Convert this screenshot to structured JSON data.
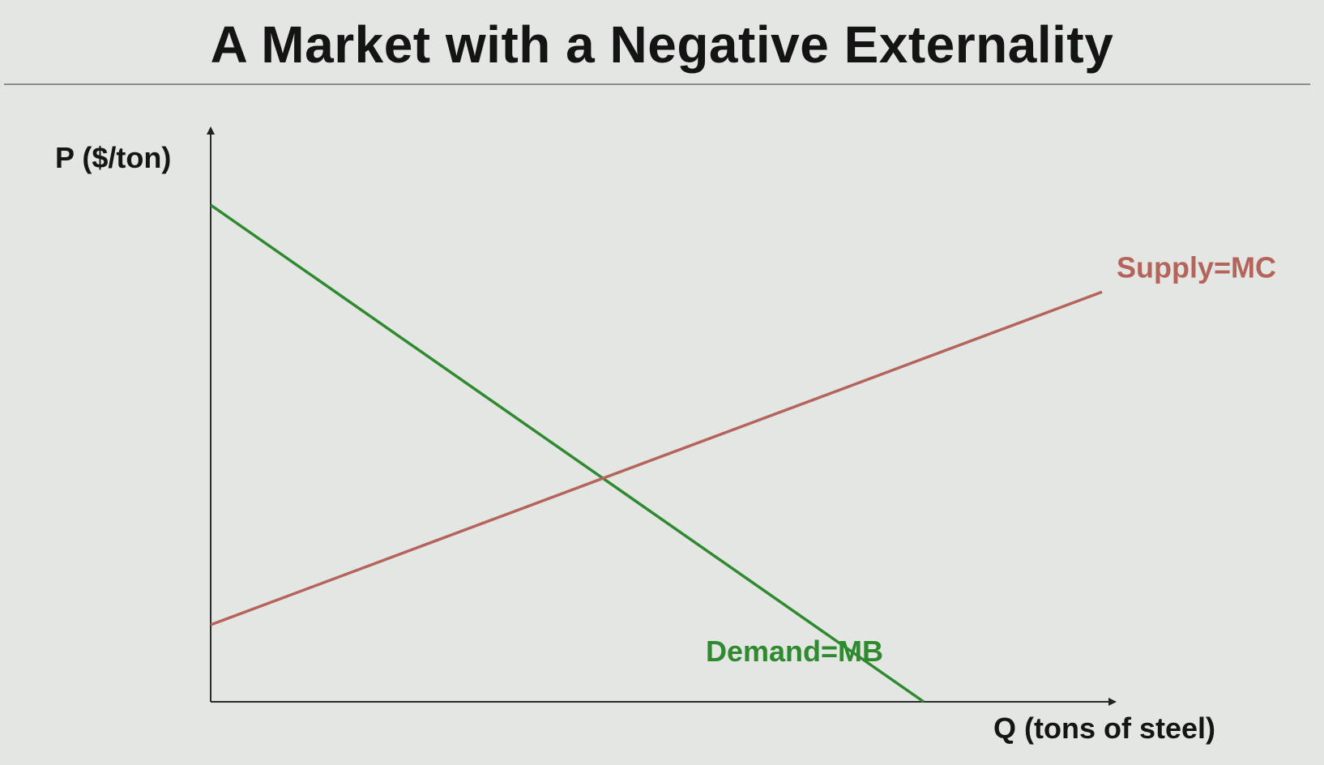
{
  "slide": {
    "title": "A Market with a Negative Externality"
  },
  "chart_data": {
    "type": "line",
    "title": "A Market with a Negative Externality",
    "xlabel": "Q (tons of steel)",
    "ylabel": "P ($/ton)",
    "xlim": [
      0,
      10
    ],
    "ylim": [
      0,
      10
    ],
    "grid": false,
    "legend": "none",
    "ticks": false,
    "series": [
      {
        "name": "Demand=MB",
        "color": "#2f8a2f",
        "x": [
          0,
          8
        ],
        "y": [
          10,
          0
        ]
      },
      {
        "name": "Supply=MC",
        "color": "#b5645c",
        "x": [
          0,
          10
        ],
        "y": [
          1.55,
          8.25
        ]
      }
    ]
  }
}
